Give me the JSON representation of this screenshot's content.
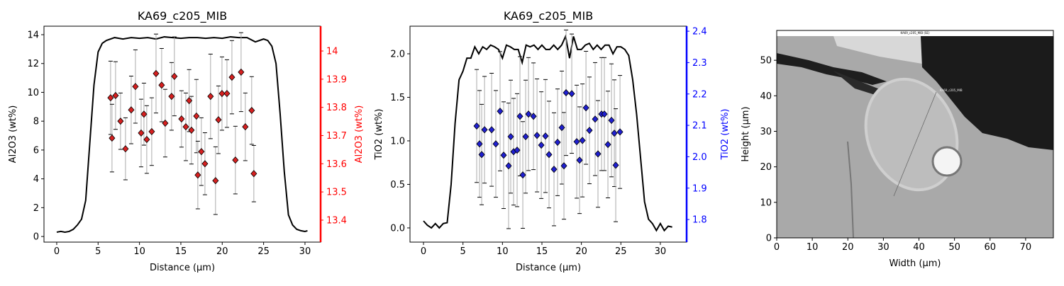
{
  "chart_data": [
    {
      "type": "profile",
      "title": "KA69_c205_MIB",
      "xlabel": "Distance (µm)",
      "ylabel": "Al2O3 (wt%)",
      "y2label": "Al2O3 (wt%)",
      "y2color": "#ff0000",
      "xlim": [
        -1.54,
        31.89
      ],
      "ylim": [
        -0.39,
        14.59
      ],
      "y2lim": [
        13.322,
        14.088
      ],
      "xticks": [
        0,
        5,
        10,
        15,
        20,
        25,
        30
      ],
      "yticks": [
        0,
        2,
        4,
        6,
        8,
        10,
        12,
        14
      ],
      "y2ticks": [
        13.4,
        13.5,
        13.6,
        13.7,
        13.8,
        13.9,
        14.0
      ],
      "series": [
        {
          "type": "line",
          "color": "#000000",
          "x": [
            0,
            0.5,
            1,
            1.5,
            2,
            2.5,
            3,
            3.5,
            4,
            4.5,
            5,
            5.5,
            6,
            7,
            8,
            9,
            10,
            11,
            12,
            13,
            14,
            15,
            16,
            17,
            18,
            19,
            20,
            21,
            22,
            23,
            24,
            25,
            25.5,
            26,
            26.5,
            27,
            27.5,
            28,
            28.5,
            29,
            29.5,
            30,
            30.3
          ],
          "values": [
            0.3,
            0.35,
            0.3,
            0.35,
            0.5,
            0.8,
            1.2,
            2.5,
            6.5,
            10.5,
            12.8,
            13.4,
            13.6,
            13.8,
            13.7,
            13.8,
            13.75,
            13.8,
            13.7,
            13.85,
            13.8,
            13.75,
            13.8,
            13.8,
            13.75,
            13.8,
            13.75,
            13.85,
            13.8,
            13.8,
            13.5,
            13.7,
            13.6,
            13.2,
            12.0,
            8.5,
            4.5,
            1.5,
            0.8,
            0.5,
            0.4,
            0.35,
            0.4
          ]
        },
        {
          "type": "errorbar",
          "axis": "y2",
          "color": "#d62020",
          "x": [
            6.51,
            6.68,
            7.11,
            7.71,
            8.31,
            9.0,
            9.51,
            10.2,
            10.54,
            10.88,
            11.48,
            12.0,
            12.68,
            13.11,
            13.88,
            14.22,
            15.08,
            15.6,
            16.0,
            16.28,
            16.88,
            17.05,
            17.48,
            17.91,
            18.59,
            19.19,
            19.54,
            19.97,
            20.57,
            21.17,
            21.59,
            22.28,
            22.79,
            23.56,
            23.82
          ],
          "values": [
            13.834,
            13.691,
            13.842,
            13.751,
            13.653,
            13.791,
            13.874,
            13.709,
            13.776,
            13.686,
            13.714,
            13.92,
            13.879,
            13.744,
            13.839,
            13.91,
            13.759,
            13.731,
            13.824,
            13.719,
            13.769,
            13.56,
            13.643,
            13.6,
            13.839,
            13.54,
            13.756,
            13.849,
            13.849,
            13.907,
            13.613,
            13.925,
            13.731,
            13.789,
            13.565
          ],
          "errors": [
            0.13,
            0.12,
            0.12,
            0.1,
            0.11,
            0.12,
            0.13,
            0.12,
            0.11,
            0.12,
            0.12,
            0.14,
            0.13,
            0.12,
            0.12,
            0.14,
            0.1,
            0.12,
            0.11,
            0.12,
            0.13,
            0.12,
            0.12,
            0.11,
            0.15,
            0.12,
            0.12,
            0.13,
            0.12,
            0.13,
            0.12,
            0.14,
            0.12,
            0.12,
            0.1
          ]
        }
      ]
    },
    {
      "type": "profile",
      "title": "KA69_c205_MIB",
      "xlabel": "Distance (µm)",
      "ylabel": "TiO2 (wt%)",
      "y2label": "TiO2 (wt%)",
      "y2color": "#0000ff",
      "xlim": [
        -1.71,
        33.33
      ],
      "ylim": [
        -0.163,
        2.317
      ],
      "y2lim": [
        1.728,
        2.416
      ],
      "xticks": [
        0,
        5,
        10,
        15,
        20,
        25,
        30
      ],
      "yticks": [
        {
          "value": 0,
          "label": "0.0"
        },
        0.5,
        {
          "value": 1,
          "label": "1.0"
        },
        1.5,
        {
          "value": 2,
          "label": "2.0"
        }
      ],
      "y2ticks": [
        1.8,
        1.9,
        {
          "value": 2,
          "label": "2.0"
        },
        2.1,
        2.2,
        2.3,
        2.4
      ],
      "series": [
        {
          "type": "line",
          "color": "#000000",
          "x": [
            0,
            0.5,
            1,
            1.5,
            2,
            2.5,
            3,
            3.5,
            4,
            4.5,
            5,
            5.5,
            6,
            6.5,
            7,
            7.5,
            8,
            8.5,
            9,
            9.5,
            10,
            10.5,
            11,
            11.5,
            12,
            12.5,
            13,
            13.5,
            14,
            14.5,
            15,
            15.5,
            16,
            16.5,
            17,
            17.5,
            18,
            18.5,
            19,
            19.5,
            20,
            20.5,
            21,
            21.5,
            22,
            22.5,
            23,
            23.5,
            24,
            24.5,
            25,
            25.5,
            26,
            26.5,
            27,
            27.5,
            28,
            28.5,
            29,
            29.5,
            30,
            30.5,
            31,
            31.5
          ],
          "values": [
            0.08,
            0.03,
            0.0,
            0.05,
            0.0,
            0.05,
            0.06,
            0.5,
            1.2,
            1.7,
            1.8,
            1.95,
            1.95,
            2.08,
            2.0,
            2.08,
            2.05,
            2.1,
            2.08,
            2.05,
            1.95,
            2.1,
            2.08,
            2.05,
            2.05,
            1.9,
            2.1,
            2.08,
            2.1,
            2.05,
            2.1,
            2.05,
            2.05,
            2.1,
            2.05,
            2.1,
            2.2,
            1.95,
            2.2,
            2.05,
            2.05,
            2.1,
            2.12,
            2.05,
            2.1,
            2.05,
            2.1,
            2.1,
            2.0,
            2.08,
            2.08,
            2.05,
            1.98,
            1.7,
            1.3,
            0.8,
            0.3,
            0.1,
            0.05,
            -0.03,
            0.05,
            -0.03,
            0.02,
            0.01
          ]
        },
        {
          "type": "errorbar",
          "axis": "y2",
          "color": "#1f1fd0",
          "x": [
            6.74,
            7.1,
            7.37,
            7.73,
            8.63,
            9.16,
            9.7,
            10.15,
            10.78,
            11.05,
            11.41,
            11.86,
            12.22,
            12.58,
            12.94,
            13.3,
            13.93,
            14.38,
            14.92,
            15.45,
            15.9,
            16.53,
            16.98,
            17.52,
            17.79,
            18.06,
            18.78,
            19.41,
            19.77,
            20.13,
            20.58,
            21.02,
            21.74,
            22.1,
            22.55,
            22.91,
            23.36,
            23.81,
            24.17,
            24.35,
            24.89
          ],
          "values": [
            2.098,
            2.041,
            2.007,
            2.086,
            2.086,
            2.041,
            2.145,
            2.005,
            1.971,
            2.064,
            2.016,
            2.021,
            2.129,
            1.942,
            2.064,
            2.136,
            2.129,
            2.068,
            2.037,
            2.066,
            2.007,
            1.96,
            2.046,
            2.093,
            1.971,
            2.204,
            2.201,
            2.048,
            1.989,
            2.052,
            2.156,
            2.084,
            2.12,
            2.009,
            2.136,
            2.136,
            2.039,
            2.116,
            2.075,
            1.973,
            2.079
          ],
          "errors": [
            0.18,
            0.17,
            0.16,
            0.17,
            0.18,
            0.17,
            0.19,
            0.17,
            0.2,
            0.18,
            0.17,
            0.18,
            0.19,
            0.17,
            0.18,
            0.18,
            0.17,
            0.18,
            0.17,
            0.18,
            0.17,
            0.18,
            0.17,
            0.18,
            0.17,
            0.2,
            0.19,
            0.18,
            0.17,
            0.18,
            0.18,
            0.17,
            0.18,
            0.17,
            0.18,
            0.18,
            0.17,
            0.18,
            0.17,
            0.18,
            0.18
          ]
        }
      ]
    },
    {
      "type": "image",
      "image_title": "KA69_c205_MIB (SE)",
      "line_label": "KA69_c205_MIB",
      "xlabel": "Width (µm)",
      "ylabel": "Height (µm)",
      "xlim": [
        0,
        77.8
      ],
      "ylim": [
        0,
        58.4
      ],
      "xticks": [
        0,
        10,
        20,
        30,
        40,
        50,
        60,
        70
      ],
      "yticks": [
        0,
        10,
        20,
        30,
        40,
        50
      ]
    }
  ]
}
